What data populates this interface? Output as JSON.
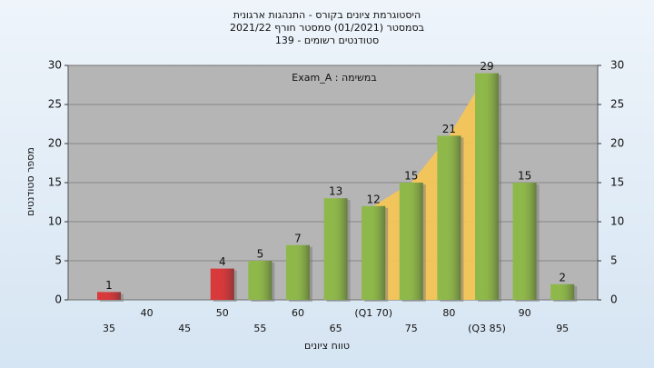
{
  "chart_data": {
    "type": "bar",
    "title": "היסטוגרמת ציונים בקורס - התנהגות ארגונית",
    "subtitle": "בסמסטר  (01/2021)  סמסטר חורף 2021/22",
    "subtitle2": "סטודנטים רשומים - 139",
    "annotation": "במשימה : Exam_A",
    "x_label": "טווח ציונים",
    "y_label": "מספר סטודנטים",
    "categories": [
      "35",
      "40",
      "45",
      "50",
      "55",
      "60",
      "65",
      "(Q1 70)",
      "75",
      "80",
      "(Q3 85)",
      "90",
      "95"
    ],
    "values": [
      1,
      0,
      0,
      4,
      5,
      7,
      13,
      12,
      15,
      21,
      29,
      15,
      2
    ],
    "bar_colors": [
      "#d8393b",
      "#d8393b",
      "#d8393b",
      "#d8393b",
      "#8fb84a",
      "#8fb84a",
      "#8fb84a",
      "#8fb84a",
      "#8fb84a",
      "#8fb84a",
      "#8fb84a",
      "#8fb84a",
      "#8fb84a"
    ],
    "quartile_color": "#f8c652",
    "ylim": [
      0,
      30
    ],
    "yticks": [
      0,
      5,
      10,
      15,
      20,
      25,
      30
    ],
    "y2lim": [
      0,
      30
    ],
    "y2ticks": [
      0,
      5,
      10,
      15,
      20,
      25,
      30
    ],
    "grid": true
  }
}
